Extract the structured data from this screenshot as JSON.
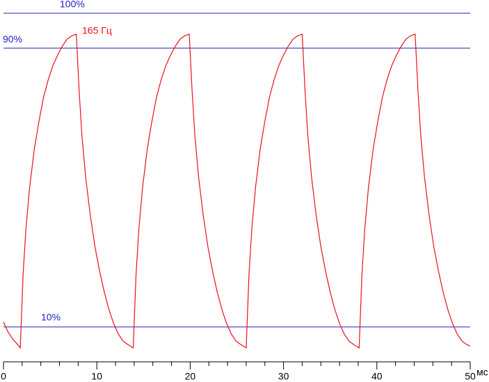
{
  "chart_data": {
    "type": "line",
    "x_unit": "мс",
    "xlim": [
      0,
      50
    ],
    "xticks": [
      0,
      10,
      20,
      30,
      40,
      50
    ],
    "minor_xticks": [
      2,
      4,
      6,
      8,
      12,
      14,
      16,
      18,
      22,
      24,
      26,
      28,
      32,
      34,
      36,
      38,
      42,
      44,
      46,
      48
    ],
    "ylim": [
      0,
      100
    ],
    "yticks": [
      {
        "value": 10,
        "label": "10%"
      },
      {
        "value": 90,
        "label": "90%"
      },
      {
        "value": 100,
        "label": "100%"
      }
    ],
    "grid_color": "#2020c0",
    "axis_color": "#000000",
    "x": [
      0,
      0.5,
      1.0,
      1.5,
      1.8,
      2.1,
      2.4,
      2.8,
      3.3,
      3.8,
      4.3,
      4.8,
      5.3,
      5.8,
      6.3,
      6.8,
      7.3,
      7.8,
      8.1,
      8.4,
      8.8,
      9.3,
      9.8,
      10.3,
      10.8,
      11.3,
      11.8,
      12.3,
      12.8,
      13.3,
      13.9,
      14.2,
      14.5,
      14.9,
      15.4,
      15.9,
      16.4,
      16.9,
      17.4,
      17.9,
      18.4,
      18.9,
      19.4,
      19.9,
      20.2,
      20.5,
      20.9,
      21.4,
      21.9,
      22.4,
      22.9,
      23.4,
      23.9,
      24.4,
      24.9,
      25.4,
      26.0,
      26.3,
      26.6,
      27.0,
      27.5,
      28.0,
      28.5,
      29.0,
      29.5,
      30.0,
      30.5,
      31.0,
      31.5,
      32.0,
      32.3,
      32.6,
      33.0,
      33.5,
      34.0,
      34.5,
      35.0,
      35.5,
      36.0,
      36.5,
      37.0,
      37.5,
      38.1,
      38.4,
      38.7,
      39.1,
      39.6,
      40.1,
      40.6,
      41.1,
      41.6,
      42.1,
      42.6,
      43.1,
      43.6,
      44.1,
      44.4,
      44.7,
      45.1,
      45.6,
      46.1,
      46.6,
      47.1,
      47.6,
      48.1,
      48.6,
      49.1,
      49.6,
      50
    ],
    "series": [
      {
        "name": "165 Гц",
        "color": "#e8101a",
        "values": [
          11.4,
          8.5,
          6.5,
          5,
          4,
          25,
          38,
          50,
          61,
          69,
          76,
          81,
          85,
          88,
          90.5,
          92.5,
          93.5,
          94,
          78,
          65,
          53,
          42,
          33,
          26,
          20,
          15,
          11,
          8,
          6,
          5,
          4,
          25,
          38,
          50,
          61,
          69,
          76,
          81,
          85,
          88,
          90.5,
          92.5,
          93.5,
          94,
          78,
          65,
          53,
          42,
          33,
          26,
          20,
          15,
          11,
          8,
          6,
          5,
          4,
          25,
          38,
          50,
          61,
          69,
          76,
          81,
          85,
          88,
          90.5,
          92.5,
          93.5,
          94,
          78,
          65,
          53,
          42,
          33,
          26,
          20,
          15,
          11,
          8,
          6,
          5,
          4,
          25,
          38,
          50,
          61,
          69,
          76,
          81,
          85,
          88,
          90.5,
          92.5,
          93.5,
          94,
          78,
          65,
          53,
          42,
          33,
          26,
          20,
          15,
          11,
          8,
          6,
          5,
          4.5
        ]
      }
    ]
  }
}
